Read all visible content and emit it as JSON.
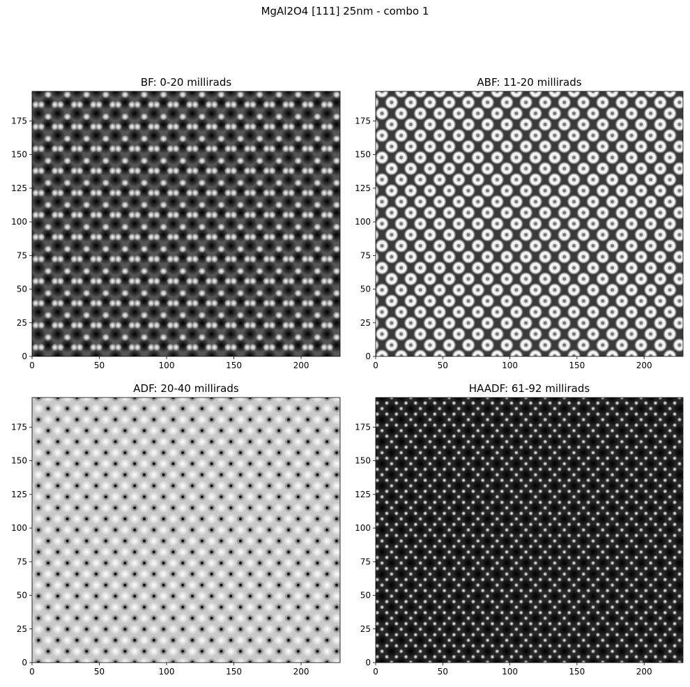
{
  "figure": {
    "suptitle": "MgAl2O4 [111] 25nm - combo 1"
  },
  "panels": [
    {
      "title": "BF: 0-20 millirads",
      "style": "bf"
    },
    {
      "title": "ABF: 11-20 millirads",
      "style": "abf"
    },
    {
      "title": "ADF: 20-40 millirads",
      "style": "adf"
    },
    {
      "title": "HAADF: 61-92 millirads",
      "style": "haadf"
    }
  ],
  "axes": {
    "xlim": [
      0,
      229
    ],
    "ylim": [
      0,
      197
    ],
    "xticks": [
      0,
      50,
      100,
      150,
      200
    ],
    "yticks": [
      0,
      25,
      50,
      75,
      100,
      125,
      150,
      175
    ]
  },
  "colormap": "gray"
}
